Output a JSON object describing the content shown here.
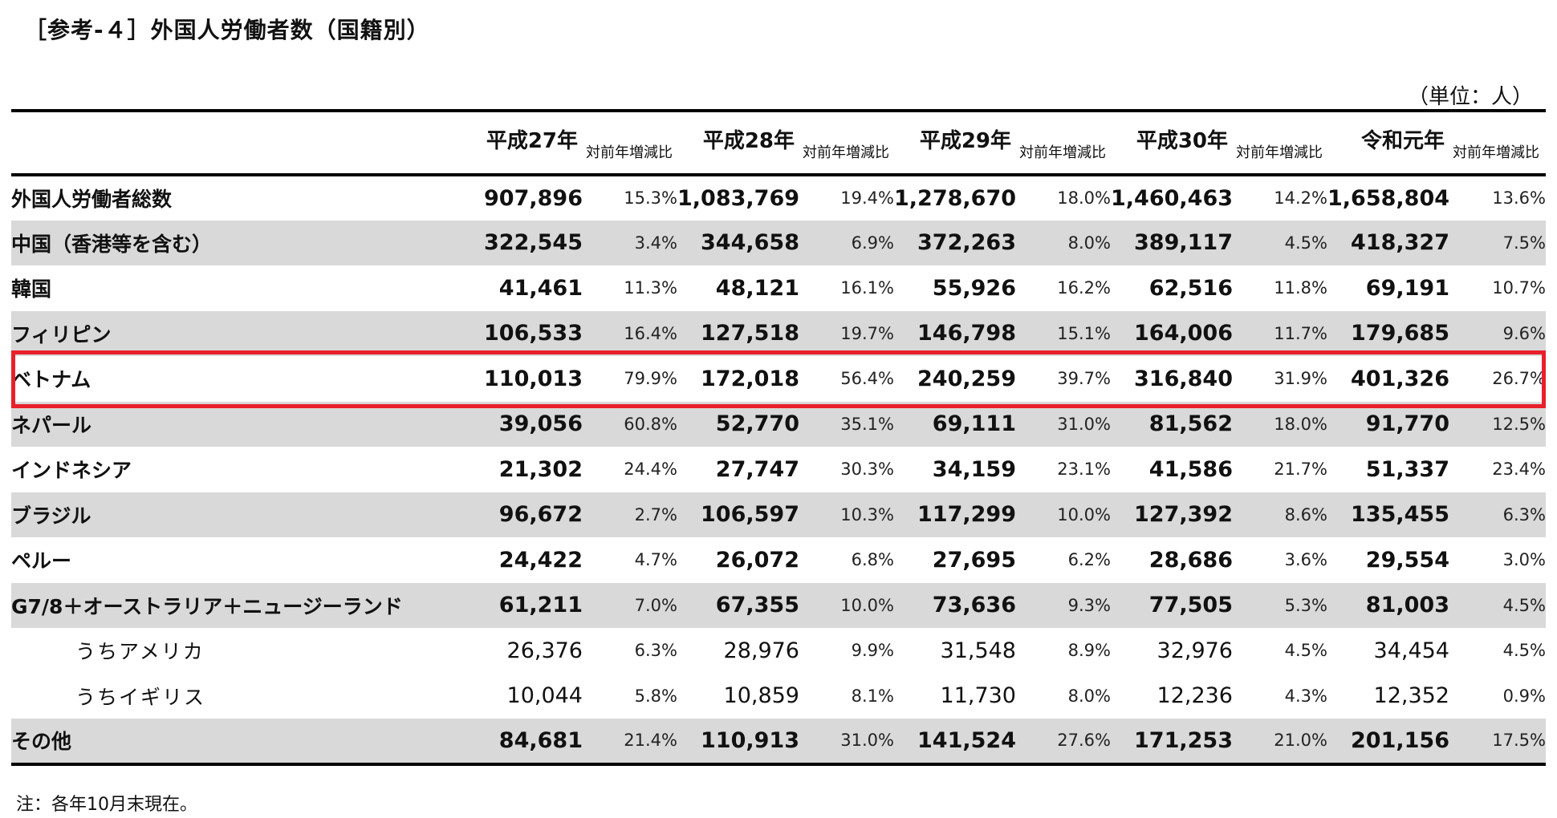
{
  "title": "［参考-４］外国人労働者数（国籍別）",
  "unit": "（単位：人）",
  "note": "注：各年10月末現在。",
  "headers": {
    "years": [
      "平成27年",
      "平成28年",
      "平成29年",
      "平成30年",
      "令和元年"
    ],
    "pct_label": "対前年増減比"
  },
  "rows": [
    {
      "label": "外国人労働者総数",
      "values": [
        "907,896",
        "1,083,769",
        "1,278,670",
        "1,460,463",
        "1,658,804"
      ],
      "pcts": [
        "15.3%",
        "19.4%",
        "18.0%",
        "14.2%",
        "13.6%"
      ]
    },
    {
      "label": "中国（香港等を含む）",
      "values": [
        "322,545",
        "344,658",
        "372,263",
        "389,117",
        "418,327"
      ],
      "pcts": [
        "3.4%",
        "6.9%",
        "8.0%",
        "4.5%",
        "7.5%"
      ]
    },
    {
      "label": "韓国",
      "values": [
        "41,461",
        "48,121",
        "55,926",
        "62,516",
        "69,191"
      ],
      "pcts": [
        "11.3%",
        "16.1%",
        "16.2%",
        "11.8%",
        "10.7%"
      ]
    },
    {
      "label": "フィリピン",
      "values": [
        "106,533",
        "127,518",
        "146,798",
        "164,006",
        "179,685"
      ],
      "pcts": [
        "16.4%",
        "19.7%",
        "15.1%",
        "11.7%",
        "9.6%"
      ]
    },
    {
      "label": "ベトナム",
      "values": [
        "110,013",
        "172,018",
        "240,259",
        "316,840",
        "401,326"
      ],
      "pcts": [
        "79.9%",
        "56.4%",
        "39.7%",
        "31.9%",
        "26.7%"
      ]
    },
    {
      "label": "ネパール",
      "values": [
        "39,056",
        "52,770",
        "69,111",
        "81,562",
        "91,770"
      ],
      "pcts": [
        "60.8%",
        "35.1%",
        "31.0%",
        "18.0%",
        "12.5%"
      ]
    },
    {
      "label": "インドネシア",
      "values": [
        "21,302",
        "27,747",
        "34,159",
        "41,586",
        "51,337"
      ],
      "pcts": [
        "24.4%",
        "30.3%",
        "23.1%",
        "21.7%",
        "23.4%"
      ]
    },
    {
      "label": "ブラジル",
      "values": [
        "96,672",
        "106,597",
        "117,299",
        "127,392",
        "135,455"
      ],
      "pcts": [
        "2.7%",
        "10.3%",
        "10.0%",
        "8.6%",
        "6.3%"
      ]
    },
    {
      "label": "ペルー",
      "values": [
        "24,422",
        "26,072",
        "27,695",
        "28,686",
        "29,554"
      ],
      "pcts": [
        "4.7%",
        "6.8%",
        "6.2%",
        "3.6%",
        "3.0%"
      ]
    },
    {
      "label": "G7/8＋オーストラリア＋ニュージーランド",
      "values": [
        "61,211",
        "67,355",
        "73,636",
        "77,505",
        "81,003"
      ],
      "pcts": [
        "7.0%",
        "10.0%",
        "9.3%",
        "5.3%",
        "4.5%"
      ]
    },
    {
      "label": "うちアメリカ",
      "values": [
        "26,376",
        "28,976",
        "31,548",
        "32,976",
        "34,454"
      ],
      "pcts": [
        "6.3%",
        "9.9%",
        "8.9%",
        "4.5%",
        "4.5%"
      ]
    },
    {
      "label": "うちイギリス",
      "values": [
        "10,044",
        "10,859",
        "11,730",
        "12,236",
        "12,352"
      ],
      "pcts": [
        "5.8%",
        "8.1%",
        "8.0%",
        "4.3%",
        "0.9%"
      ]
    },
    {
      "label": "その他",
      "values": [
        "84,681",
        "110,913",
        "141,524",
        "171,253",
        "201,156"
      ],
      "pcts": [
        "21.4%",
        "31.0%",
        "27.6%",
        "21.0%",
        "17.5%"
      ]
    }
  ],
  "chart_data": {
    "type": "table",
    "title": "［参考-４］外国人労働者数（国籍別）",
    "unit": "（単位：人）",
    "columns": [
      "平成27年",
      "平成28年",
      "平成29年",
      "平成30年",
      "令和元年"
    ],
    "highlighted_row": "ベトナム",
    "highlight_color": "#e8202a",
    "row_fill_gray": "#d9d9d9",
    "series": [
      {
        "name": "外国人労働者総数",
        "values": [
          907896,
          1083769,
          1278670,
          1460463,
          1658804
        ],
        "change_pct": [
          15.3,
          19.4,
          18.0,
          14.2,
          13.6
        ]
      },
      {
        "name": "中国（香港等を含む）",
        "values": [
          322545,
          344658,
          372263,
          389117,
          418327
        ],
        "change_pct": [
          3.4,
          6.9,
          8.0,
          4.5,
          7.5
        ]
      },
      {
        "name": "韓国",
        "values": [
          41461,
          48121,
          55926,
          62516,
          69191
        ],
        "change_pct": [
          11.3,
          16.1,
          16.2,
          11.8,
          10.7
        ]
      },
      {
        "name": "フィリピン",
        "values": [
          106533,
          127518,
          146798,
          164006,
          179685
        ],
        "change_pct": [
          16.4,
          19.7,
          15.1,
          11.7,
          9.6
        ]
      },
      {
        "name": "ベトナム",
        "values": [
          110013,
          172018,
          240259,
          316840,
          401326
        ],
        "change_pct": [
          79.9,
          56.4,
          39.7,
          31.9,
          26.7
        ]
      },
      {
        "name": "ネパール",
        "values": [
          39056,
          52770,
          69111,
          81562,
          91770
        ],
        "change_pct": [
          60.8,
          35.1,
          31.0,
          18.0,
          12.5
        ]
      },
      {
        "name": "インドネシア",
        "values": [
          21302,
          27747,
          34159,
          41586,
          51337
        ],
        "change_pct": [
          24.4,
          30.3,
          23.1,
          21.7,
          23.4
        ]
      },
      {
        "name": "ブラジル",
        "values": [
          96672,
          106597,
          117299,
          127392,
          135455
        ],
        "change_pct": [
          2.7,
          10.3,
          10.0,
          8.6,
          6.3
        ]
      },
      {
        "name": "ペルー",
        "values": [
          24422,
          26072,
          27695,
          28686,
          29554
        ],
        "change_pct": [
          4.7,
          6.8,
          6.2,
          3.6,
          3.0
        ]
      },
      {
        "name": "G7/8＋オーストラリア＋ニュージーランド",
        "values": [
          61211,
          67355,
          73636,
          77505,
          81003
        ],
        "change_pct": [
          7.0,
          10.0,
          9.3,
          5.3,
          4.5
        ]
      },
      {
        "name": "うちアメリカ",
        "values": [
          26376,
          28976,
          31548,
          32976,
          34454
        ],
        "change_pct": [
          6.3,
          9.9,
          8.9,
          4.5,
          4.5
        ]
      },
      {
        "name": "うちイギリス",
        "values": [
          10044,
          10859,
          11730,
          12236,
          12352
        ],
        "change_pct": [
          5.8,
          8.1,
          8.0,
          4.3,
          0.9
        ]
      },
      {
        "name": "その他",
        "values": [
          84681,
          110913,
          141524,
          171253,
          201156
        ],
        "change_pct": [
          21.4,
          31.0,
          27.6,
          21.0,
          17.5
        ]
      }
    ]
  }
}
